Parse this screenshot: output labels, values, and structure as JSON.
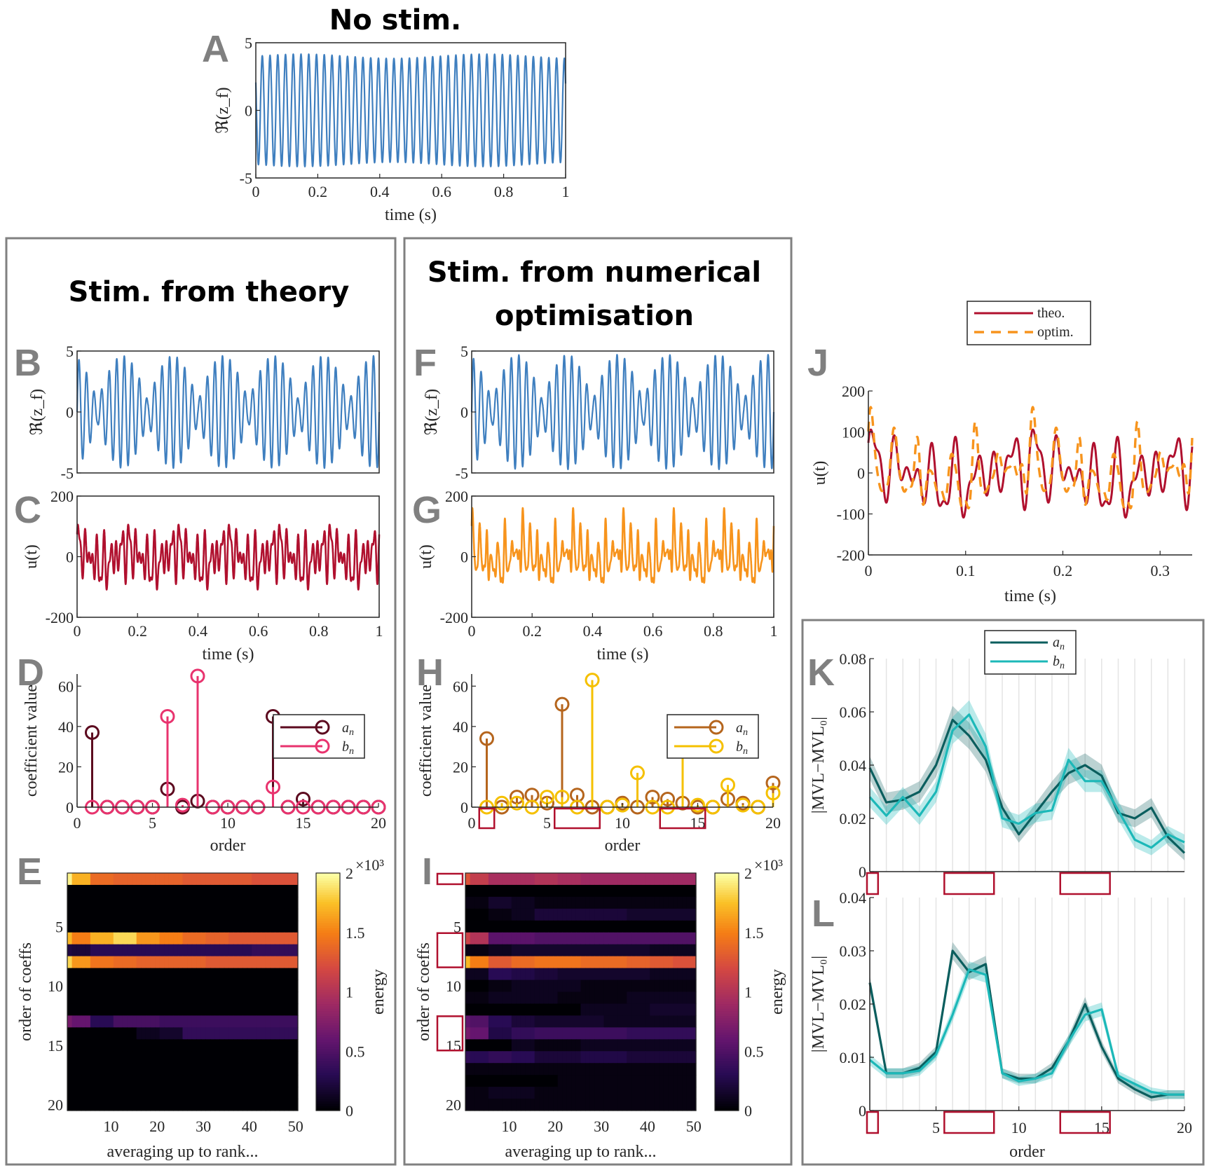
{
  "titles": {
    "no_stim": "No stim.",
    "theory": "Stim. from theory",
    "numerical_line1": "Stim. from numerical",
    "numerical_line2": "optimisation"
  },
  "panel_letters": [
    "A",
    "B",
    "C",
    "D",
    "E",
    "F",
    "G",
    "H",
    "I",
    "J",
    "K",
    "L"
  ],
  "colors": {
    "signal_blue": "#3f7fbf",
    "theory_red": "#b0102e",
    "optim_orange": "#f7941d",
    "theory_an": "#5c0a1f",
    "theory_bn": "#e8336e",
    "optim_an": "#b5651d",
    "optim_bn": "#f5c000",
    "mvl_an": "#0b5e5e",
    "mvl_bn": "#1cb8b8",
    "highlight_box": "#b0102e",
    "panel_frame": "#808080"
  },
  "highlighted_orders": [
    [
      1
    ],
    [
      6,
      7,
      8
    ],
    [
      13,
      14,
      15
    ]
  ],
  "chart_data": [
    {
      "id": "A",
      "type": "line",
      "xlabel": "time (s)",
      "ylabel": "ℜ(z_f)",
      "xlim": [
        0,
        1
      ],
      "ylim": [
        -5,
        5
      ],
      "xticks": [
        0,
        0.2,
        0.4,
        0.6,
        0.8,
        1
      ],
      "xtick_labels": [
        "0",
        "0.2",
        "0.4",
        "0.6",
        "0.8",
        "1"
      ],
      "yticks": [
        -5,
        0,
        5
      ],
      "ytick_labels": [
        "-5",
        "0",
        "5"
      ],
      "signal": {
        "cycles_per_second": 40,
        "amplitude": 4
      }
    },
    {
      "id": "B",
      "type": "line",
      "xlabel": "",
      "ylabel": "ℜ(z_f)",
      "xlim": [
        0,
        1
      ],
      "ylim": [
        -5,
        5
      ],
      "yticks": [
        -5,
        0,
        5
      ],
      "ytick_labels": [
        "-5",
        "0",
        "5"
      ],
      "signal": {
        "cycles_per_second": 40,
        "amplitude": 4.7,
        "bursts_per_second": 6
      }
    },
    {
      "id": "C",
      "type": "line",
      "xlabel": "time (s)",
      "ylabel": "u(t)",
      "xlim": [
        0,
        1
      ],
      "ylim": [
        -200,
        200
      ],
      "xticks": [
        0,
        0.2,
        0.4,
        0.6,
        0.8,
        1
      ],
      "xtick_labels": [
        "0",
        "0.2",
        "0.4",
        "0.6",
        "0.8",
        "1"
      ],
      "yticks": [
        -200,
        0,
        200
      ],
      "ytick_labels": [
        "-200",
        "0",
        "200"
      ],
      "source_coefficients": "D"
    },
    {
      "id": "D",
      "type": "stem",
      "xlabel": "order",
      "ylabel": "coefficient value",
      "xlim": [
        0,
        20
      ],
      "ylim": [
        0,
        66
      ],
      "xticks": [
        0,
        5,
        10,
        15,
        20
      ],
      "xtick_labels": [
        "0",
        "5",
        "10",
        "15",
        "20"
      ],
      "yticks": [
        0,
        20,
        40,
        60
      ],
      "ytick_labels": [
        "0",
        "20",
        "40",
        "60"
      ],
      "orders": [
        1,
        2,
        3,
        4,
        5,
        6,
        7,
        8,
        9,
        10,
        11,
        12,
        13,
        14,
        15,
        16,
        17,
        18,
        19,
        20
      ],
      "series": [
        {
          "name": "a_n",
          "label_base": "a",
          "label_sub": "n",
          "values": [
            37,
            0,
            0,
            0,
            0,
            9,
            0,
            3,
            0,
            0,
            0,
            0,
            45,
            0,
            4,
            0,
            0,
            0,
            0,
            0
          ]
        },
        {
          "name": "b_n",
          "label_base": "b",
          "label_sub": "n",
          "values": [
            0,
            0,
            0,
            0,
            0,
            45,
            1,
            65,
            0,
            0,
            0,
            0,
            10,
            0,
            0,
            0,
            0,
            0,
            0,
            0
          ]
        }
      ],
      "legend": "top-right"
    },
    {
      "id": "E",
      "type": "heatmap",
      "xlabel": "averaging up to rank...",
      "ylabel": "order of coeffs",
      "xlim": [
        1,
        50
      ],
      "xticks": [
        10,
        20,
        30,
        40,
        50
      ],
      "yticks": [
        5,
        10,
        15,
        20
      ],
      "colorbar": {
        "label": "energy",
        "ticks": [
          0,
          0.5,
          1,
          1.5,
          2
        ],
        "tick_labels": [
          "0",
          "0.5",
          "1",
          "1.5",
          "2"
        ],
        "exponent": "×10³",
        "range": [
          0,
          2
        ]
      },
      "rank_groups": [
        "1-5",
        "6-10",
        "11-15",
        "16-20",
        "21-25",
        "26-30",
        "31-35",
        "36-40",
        "41-45",
        "46-50"
      ],
      "values": [
        [
          1.7,
          1.4,
          1.35,
          1.35,
          1.35,
          1.3,
          1.3,
          1.3,
          1.25,
          1.25
        ],
        [
          0,
          0,
          0,
          0,
          0,
          0,
          0,
          0,
          0,
          0
        ],
        [
          0,
          0,
          0,
          0,
          0,
          0,
          0,
          0,
          0,
          0
        ],
        [
          0,
          0,
          0,
          0,
          0,
          0,
          0,
          0,
          0,
          0
        ],
        [
          0,
          0,
          0,
          0,
          0,
          0,
          0,
          0,
          0,
          0
        ],
        [
          1.5,
          1.7,
          1.85,
          1.6,
          1.5,
          1.4,
          1.35,
          1.3,
          1.3,
          1.3
        ],
        [
          0.2,
          0.3,
          0.3,
          0.3,
          0.3,
          0.3,
          0.3,
          0.3,
          0.35,
          0.35
        ],
        [
          1.6,
          1.45,
          1.4,
          1.35,
          1.35,
          1.35,
          1.3,
          1.3,
          1.3,
          1.3
        ],
        [
          0,
          0,
          0,
          0,
          0,
          0,
          0,
          0,
          0,
          0
        ],
        [
          0,
          0,
          0,
          0,
          0,
          0,
          0,
          0,
          0,
          0
        ],
        [
          0,
          0,
          0,
          0,
          0,
          0,
          0,
          0,
          0,
          0
        ],
        [
          0,
          0,
          0,
          0,
          0,
          0,
          0,
          0,
          0,
          0
        ],
        [
          0.6,
          0.3,
          0.45,
          0.45,
          0.4,
          0.4,
          0.4,
          0.4,
          0.4,
          0.4
        ],
        [
          0,
          0,
          0,
          0.1,
          0.15,
          0.35,
          0.35,
          0.35,
          0.35,
          0.35
        ],
        [
          0,
          0,
          0,
          0,
          0,
          0,
          0,
          0,
          0,
          0
        ],
        [
          0,
          0,
          0,
          0,
          0,
          0,
          0,
          0,
          0,
          0
        ],
        [
          0,
          0,
          0,
          0,
          0,
          0,
          0,
          0,
          0,
          0
        ],
        [
          0,
          0,
          0,
          0,
          0,
          0,
          0,
          0,
          0,
          0
        ],
        [
          0,
          0,
          0,
          0,
          0,
          0,
          0,
          0,
          0,
          0
        ],
        [
          0,
          0,
          0,
          0,
          0,
          0,
          0,
          0,
          0,
          0
        ]
      ]
    },
    {
      "id": "F",
      "type": "line",
      "xlabel": "",
      "ylabel": "ℜ(z_f)",
      "xlim": [
        0,
        1
      ],
      "ylim": [
        -5,
        5
      ],
      "yticks": [
        -5,
        0,
        5
      ],
      "ytick_labels": [
        "-5",
        "0",
        "5"
      ],
      "signal": {
        "cycles_per_second": 40,
        "amplitude": 4.7,
        "bursts_per_second": 6
      }
    },
    {
      "id": "G",
      "type": "line",
      "xlabel": "time (s)",
      "ylabel": "u(t)",
      "xlim": [
        0,
        1
      ],
      "ylim": [
        -200,
        200
      ],
      "xticks": [
        0,
        0.2,
        0.4,
        0.6,
        0.8,
        1
      ],
      "xtick_labels": [
        "0",
        "0.2",
        "0.4",
        "0.6",
        "0.8",
        "1"
      ],
      "yticks": [
        -200,
        0,
        200
      ],
      "ytick_labels": [
        "-200",
        "0",
        "200"
      ],
      "source_coefficients": "H"
    },
    {
      "id": "H",
      "type": "stem",
      "xlabel": "order",
      "ylabel": "coefficient value",
      "xlim": [
        0,
        20
      ],
      "ylim": [
        0,
        66
      ],
      "xticks": [
        0,
        5,
        10,
        15,
        20
      ],
      "xtick_labels": [
        "0",
        "5",
        "10",
        "15",
        "20"
      ],
      "yticks": [
        0,
        20,
        40,
        60
      ],
      "ytick_labels": [
        "0",
        "20",
        "40",
        "60"
      ],
      "orders": [
        1,
        2,
        3,
        4,
        5,
        6,
        7,
        8,
        9,
        10,
        11,
        12,
        13,
        14,
        15,
        16,
        17,
        18,
        19,
        20
      ],
      "series": [
        {
          "name": "a_n",
          "label_base": "a",
          "label_sub": "n",
          "values": [
            34,
            0,
            5,
            6,
            2,
            51,
            6,
            0,
            0,
            2,
            0,
            5,
            4,
            2,
            0,
            0,
            4,
            2,
            0,
            12
          ]
        },
        {
          "name": "b_n",
          "label_base": "b",
          "label_sub": "n",
          "values": [
            0,
            2,
            2,
            0,
            5,
            5,
            0,
            63,
            0,
            1,
            17,
            0,
            0,
            36,
            1,
            0,
            11,
            1,
            0,
            7
          ]
        }
      ],
      "legend": "top-right"
    },
    {
      "id": "I",
      "type": "heatmap",
      "xlabel": "averaging up to rank...",
      "ylabel": "order of coeffs",
      "xlim": [
        1,
        50
      ],
      "xticks": [
        10,
        20,
        30,
        40,
        50
      ],
      "yticks": [
        5,
        10,
        15,
        20
      ],
      "colorbar": {
        "label": "energy",
        "ticks": [
          0,
          0.5,
          1,
          1.5,
          2
        ],
        "tick_labels": [
          "0",
          "0.5",
          "1",
          "1.5",
          "2"
        ],
        "exponent": "×10³",
        "range": [
          0,
          2
        ]
      },
      "rank_groups": [
        "1-5",
        "6-10",
        "11-15",
        "16-20",
        "21-25",
        "26-30",
        "31-35",
        "36-40",
        "41-45",
        "46-50"
      ],
      "values": [
        [
          1.1,
          0.95,
          0.95,
          1.0,
          0.95,
          0.9,
          0.9,
          0.9,
          0.9,
          0.9
        ],
        [
          0,
          0,
          0,
          0,
          0,
          0,
          0,
          0,
          0,
          0
        ],
        [
          0.05,
          0.15,
          0.1,
          0.05,
          0.05,
          0.05,
          0.05,
          0.05,
          0.05,
          0.05
        ],
        [
          0,
          0.05,
          0.1,
          0.2,
          0.2,
          0.2,
          0.2,
          0.15,
          0.15,
          0.15
        ],
        [
          0,
          0,
          0,
          0,
          0,
          0,
          0,
          0,
          0,
          0
        ],
        [
          1.0,
          0.55,
          0.55,
          0.5,
          0.5,
          0.5,
          0.5,
          0.5,
          0.5,
          0.5
        ],
        [
          0.05,
          0.1,
          0.15,
          0.15,
          0.15,
          0.15,
          0.15,
          0.15,
          0.1,
          0.1
        ],
        [
          1.5,
          1.3,
          1.4,
          1.45,
          1.45,
          1.4,
          1.4,
          1.35,
          1.3,
          1.25
        ],
        [
          0.1,
          0.3,
          0.25,
          0.2,
          0.15,
          0.15,
          0.15,
          0.15,
          0.1,
          0.1
        ],
        [
          0,
          0.05,
          0.1,
          0.1,
          0.1,
          0.05,
          0.05,
          0.05,
          0.05,
          0.05
        ],
        [
          0.05,
          0.1,
          0.1,
          0.1,
          0.05,
          0.05,
          0.05,
          0.1,
          0.1,
          0.1
        ],
        [
          0,
          0,
          0,
          0,
          0,
          0.1,
          0.1,
          0.1,
          0.15,
          0.15
        ],
        [
          0.5,
          0.3,
          0.2,
          0.15,
          0.15,
          0.15,
          0.1,
          0.1,
          0.1,
          0.1
        ],
        [
          0.6,
          0.25,
          0.35,
          0.4,
          0.4,
          0.4,
          0.4,
          0.35,
          0.35,
          0.35
        ],
        [
          0,
          0,
          0.1,
          0.05,
          0.05,
          0.1,
          0.1,
          0.1,
          0.1,
          0.1
        ],
        [
          0.3,
          0.35,
          0.3,
          0.2,
          0.2,
          0.25,
          0.25,
          0.2,
          0.2,
          0.2
        ],
        [
          0.05,
          0.05,
          0.05,
          0.05,
          0.05,
          0.05,
          0.05,
          0.05,
          0.05,
          0.05
        ],
        [
          0,
          0,
          0,
          0,
          0.05,
          0.05,
          0.05,
          0.05,
          0.05,
          0.05
        ],
        [
          0.05,
          0.1,
          0.1,
          0.05,
          0.05,
          0.05,
          0.05,
          0.05,
          0.05,
          0.05
        ],
        [
          0.05,
          0.05,
          0.05,
          0.05,
          0.05,
          0.05,
          0.05,
          0.05,
          0.05,
          0.05
        ]
      ]
    },
    {
      "id": "J",
      "type": "line",
      "xlabel": "time (s)",
      "ylabel": "u(t)",
      "xlim": [
        0,
        0.333
      ],
      "ylim": [
        -200,
        200
      ],
      "xticks": [
        0,
        0.1,
        0.2,
        0.3
      ],
      "xtick_labels": [
        "0",
        "0.1",
        "0.2",
        "0.3"
      ],
      "yticks": [
        -200,
        -100,
        0,
        100,
        200
      ],
      "ytick_labels": [
        "-200",
        "-100",
        "0",
        "100",
        "200"
      ],
      "series": [
        {
          "name": "theo.",
          "source_coefficients": "D",
          "style": "solid"
        },
        {
          "name": "optim.",
          "source_coefficients": "H",
          "style": "dashed"
        }
      ],
      "legend": "top"
    },
    {
      "id": "K",
      "type": "line",
      "xlabel": "",
      "ylabel": "|MVL−MVL₀|",
      "xlim": [
        1,
        20
      ],
      "ylim": [
        0,
        0.08
      ],
      "yticks": [
        0,
        0.02,
        0.04,
        0.06,
        0.08
      ],
      "ytick_labels": [
        "0",
        "0.02",
        "0.04",
        "0.06",
        "0.08"
      ],
      "x": [
        1,
        2,
        3,
        4,
        5,
        6,
        7,
        8,
        9,
        10,
        11,
        12,
        13,
        14,
        15,
        16,
        17,
        18,
        19,
        20
      ],
      "series": [
        {
          "name": "a_n",
          "label_base": "a",
          "label_sub": "n",
          "values": [
            0.039,
            0.026,
            0.027,
            0.03,
            0.04,
            0.057,
            0.051,
            0.042,
            0.024,
            0.014,
            0.022,
            0.03,
            0.037,
            0.04,
            0.036,
            0.022,
            0.02,
            0.024,
            0.013,
            0.007
          ],
          "uncertainty": 0.004
        },
        {
          "name": "b_n",
          "label_base": "b",
          "label_sub": "n",
          "values": [
            0.028,
            0.021,
            0.028,
            0.021,
            0.03,
            0.053,
            0.059,
            0.047,
            0.02,
            0.018,
            0.022,
            0.023,
            0.042,
            0.034,
            0.034,
            0.023,
            0.012,
            0.009,
            0.014,
            0.011
          ],
          "uncertainty": 0.004
        }
      ],
      "legend": "top",
      "grid": "vertical"
    },
    {
      "id": "L",
      "type": "line",
      "xlabel": "order",
      "ylabel": "|MVL−MVL₀|",
      "xlim": [
        1,
        20
      ],
      "ylim": [
        0,
        0.04
      ],
      "xticks": [
        5,
        10,
        15,
        20
      ],
      "xtick_labels": [
        "5",
        "10",
        "15",
        "20"
      ],
      "yticks": [
        0,
        0.01,
        0.02,
        0.03,
        0.04
      ],
      "ytick_labels": [
        "0",
        "0.01",
        "0.02",
        "0.03",
        "0.04"
      ],
      "x": [
        1,
        2,
        3,
        4,
        5,
        6,
        7,
        8,
        9,
        10,
        11,
        12,
        13,
        14,
        15,
        16,
        17,
        18,
        19,
        20
      ],
      "series": [
        {
          "name": "a_n",
          "values": [
            0.024,
            0.007,
            0.007,
            0.008,
            0.011,
            0.03,
            0.026,
            0.0275,
            0.007,
            0.006,
            0.006,
            0.008,
            0.013,
            0.02,
            0.012,
            0.006,
            0.004,
            0.0025,
            0.003,
            0.003
          ],
          "uncertainty": 0.0012
        },
        {
          "name": "b_n",
          "values": [
            0.0095,
            0.007,
            0.007,
            0.0075,
            0.0105,
            0.018,
            0.0265,
            0.0255,
            0.007,
            0.0055,
            0.006,
            0.007,
            0.013,
            0.018,
            0.019,
            0.0065,
            0.005,
            0.0035,
            0.003,
            0.003
          ],
          "uncertainty": 0.0012
        }
      ],
      "grid": "vertical"
    }
  ]
}
